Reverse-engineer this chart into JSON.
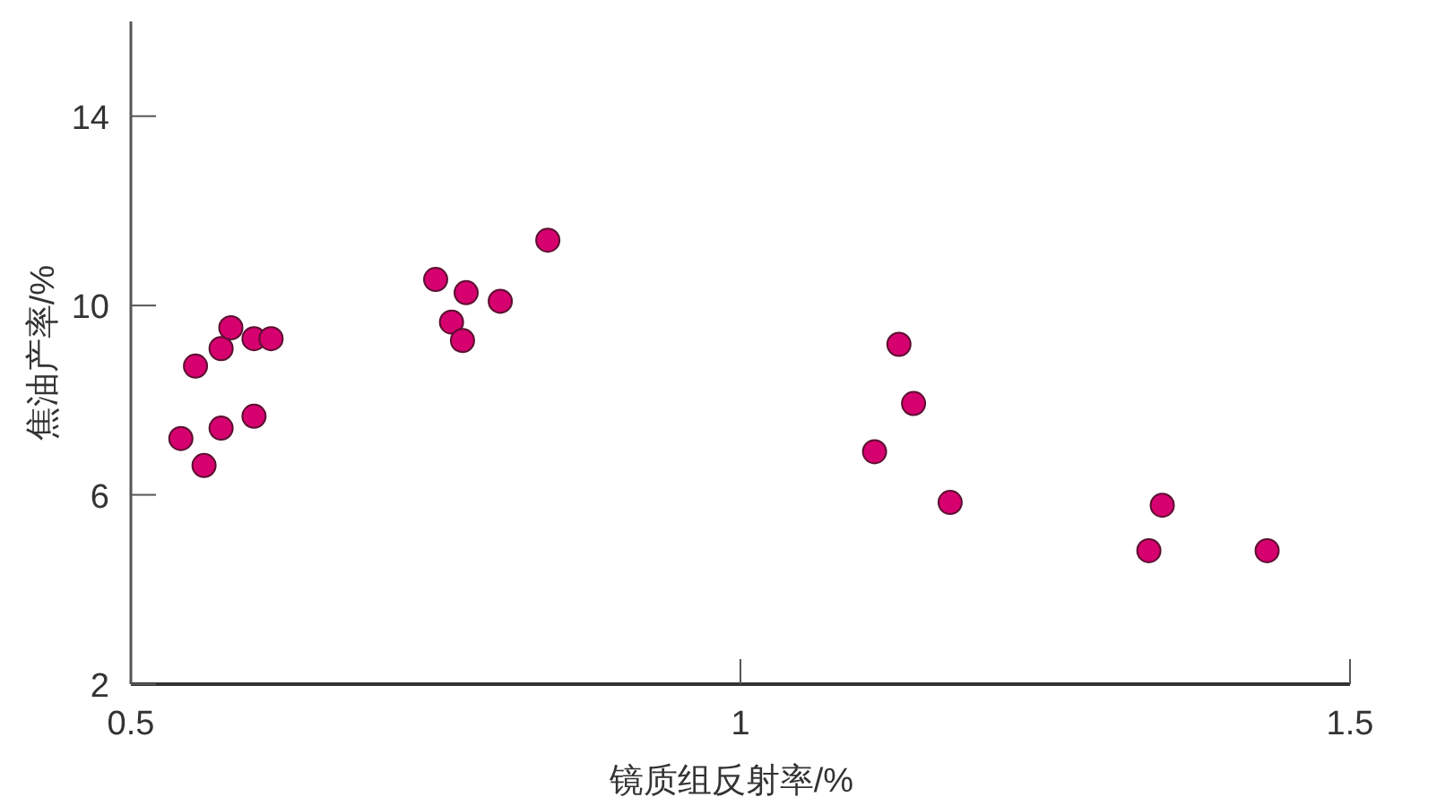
{
  "chart_data": {
    "type": "scatter",
    "xlabel": "镜质组反射率/%",
    "ylabel": "焦油产率/%",
    "xlim": [
      0.5,
      1.5
    ],
    "ylim": [
      2,
      16
    ],
    "xticks": [
      0.5,
      1,
      1.5
    ],
    "yticks": [
      2,
      6,
      10,
      14
    ],
    "grid": false,
    "marker": "circle",
    "series": [
      {
        "color": "#d6006f",
        "x": [
          0.541,
          0.56,
          0.574,
          0.601,
          0.553,
          0.574,
          0.582,
          0.601,
          0.615,
          0.75,
          0.775,
          0.803,
          0.763,
          0.772,
          0.842,
          1.13,
          1.142,
          1.11,
          1.172,
          1.346,
          1.335,
          1.432
        ],
        "values": [
          7.19,
          6.62,
          7.41,
          7.66,
          8.72,
          9.09,
          9.53,
          9.3,
          9.3,
          10.55,
          10.27,
          10.09,
          9.65,
          9.26,
          11.38,
          9.18,
          7.93,
          6.91,
          5.84,
          5.78,
          4.82,
          4.82
        ]
      }
    ]
  }
}
